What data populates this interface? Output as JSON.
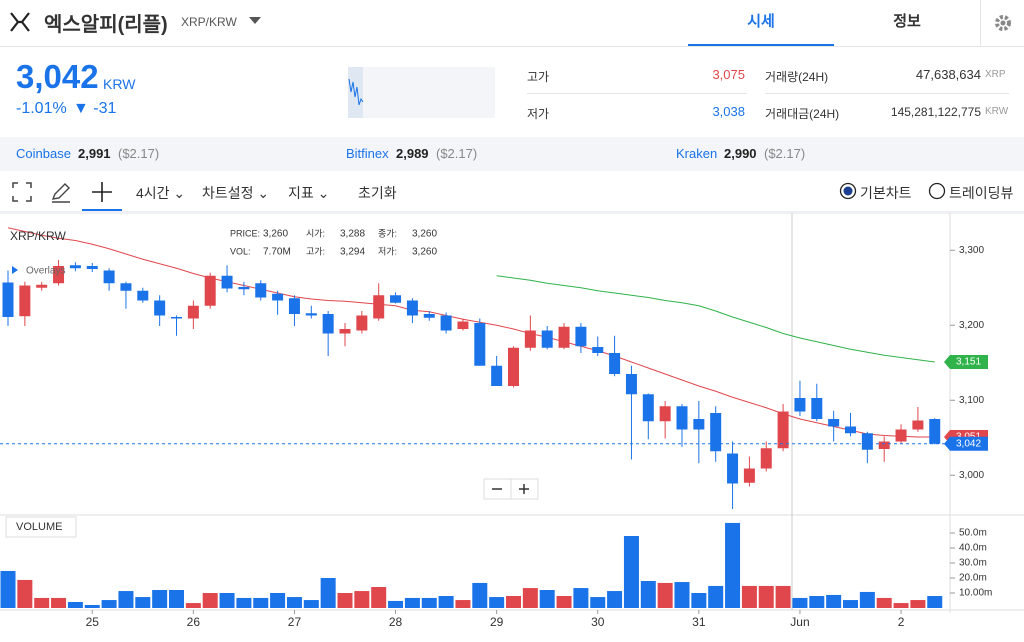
{
  "header": {
    "title": "엑스알피(리플)",
    "pair": "XRP/KRW",
    "tabs": [
      "시세",
      "정보"
    ],
    "price": "3,042",
    "currency": "KRW",
    "change_pct": "-1.01%",
    "change": "▼ -31",
    "stats": [
      {
        "label": "고가",
        "value": "3,075"
      },
      {
        "label": "저가",
        "value": "3,038"
      },
      {
        "label": "거래량(24H)",
        "value": "47,638,634",
        "unit": "XRP"
      },
      {
        "label": "거래대금(24H)",
        "value": "145,281,122,775",
        "unit": "KRW"
      }
    ]
  },
  "exchanges": [
    {
      "name": "Coinbase",
      "price": "2,991",
      "usd": "($2.17)"
    },
    {
      "name": "Bitfinex",
      "price": "2,989",
      "usd": "($2.17)"
    },
    {
      "name": "Kraken",
      "price": "2,990",
      "usd": "($2.17)"
    }
  ],
  "toolbar": {
    "interval": "4시간",
    "settings": "차트설정",
    "indicators": "지표",
    "reset": "초기화",
    "modes": [
      "기본차트",
      "트레이딩뷰"
    ]
  },
  "chart_data": {
    "type": "candlestick",
    "pair_label": "XRP/KRW",
    "overlays_label": "Overlays",
    "volume_label": "VOLUME",
    "info": [
      {
        "label": "PRICE:",
        "value": "3,260"
      },
      {
        "label": "시가:",
        "value": "3,288"
      },
      {
        "label": "종가:",
        "value": "3,260"
      },
      {
        "label": "VOL:",
        "value": "7.70M"
      },
      {
        "label": "고가:",
        "value": "3,294"
      },
      {
        "label": "저가:",
        "value": "3,260"
      }
    ],
    "categories": [
      null,
      null,
      null,
      null,
      null,
      "25",
      null,
      null,
      null,
      null,
      null,
      "26",
      null,
      null,
      null,
      null,
      null,
      "27",
      null,
      null,
      null,
      null,
      null,
      "28",
      null,
      null,
      null,
      null,
      null,
      "29",
      null,
      null,
      null,
      null,
      null,
      "30",
      null,
      null,
      null,
      null,
      null,
      "31",
      null,
      null,
      null,
      null,
      null,
      "Jun",
      null,
      null,
      null,
      null,
      null,
      "2",
      null,
      null
    ],
    "open": [
      3257,
      3212,
      3250,
      3256,
      3280,
      3279,
      3273,
      3256,
      3246,
      3233,
      3211,
      3209,
      3226,
      3266,
      3251,
      3256,
      3242,
      3236,
      3216,
      3215,
      3189,
      3193,
      3209,
      3240,
      3233,
      3215,
      3213,
      3195,
      3203,
      3146,
      3119,
      3170,
      3193,
      3170,
      3198,
      3171,
      3163,
      3135,
      3108,
      3072,
      3092,
      3075,
      3083,
      3029,
      2990,
      3009,
      3036,
      3103,
      3103,
      3075,
      3065,
      3056,
      3035,
      3045,
      3061,
      3075
    ],
    "high": [
      3273,
      3258,
      3258,
      3287,
      3284,
      3283,
      3276,
      3258,
      3250,
      3240,
      3213,
      3233,
      3270,
      3280,
      3258,
      3260,
      3246,
      3240,
      3226,
      3219,
      3203,
      3219,
      3256,
      3244,
      3236,
      3219,
      3217,
      3209,
      3209,
      3159,
      3172,
      3213,
      3199,
      3203,
      3203,
      3185,
      3186,
      3146,
      3109,
      3099,
      3095,
      3099,
      3092,
      3045,
      3025,
      3045,
      3095,
      3126,
      3122,
      3086,
      3083,
      3058,
      3052,
      3068,
      3091,
      3076
    ],
    "low": [
      3199,
      3199,
      3246,
      3253,
      3272,
      3271,
      3246,
      3222,
      3230,
      3199,
      3186,
      3195,
      3222,
      3244,
      3240,
      3233,
      3214,
      3199,
      3209,
      3159,
      3172,
      3189,
      3206,
      3229,
      3203,
      3206,
      3189,
      3193,
      3146,
      3119,
      3117,
      3166,
      3168,
      3168,
      3163,
      3159,
      3132,
      3021,
      3048,
      3049,
      3038,
      3016,
      3018,
      2955,
      2985,
      3005,
      3032,
      3079,
      3072,
      3045,
      3052,
      3016,
      3018,
      3042,
      3058,
      3041
    ],
    "close": [
      3211,
      3253,
      3254,
      3279,
      3276,
      3275,
      3256,
      3246,
      3233,
      3213,
      3209,
      3226,
      3266,
      3249,
      3248,
      3237,
      3233,
      3215,
      3213,
      3189,
      3195,
      3213,
      3240,
      3230,
      3213,
      3210,
      3193,
      3205,
      3146,
      3119,
      3170,
      3193,
      3170,
      3198,
      3172,
      3163,
      3135,
      3108,
      3072,
      3092,
      3061,
      3061,
      3032,
      2989,
      3009,
      3036,
      3085,
      3085,
      3075,
      3065,
      3056,
      3034,
      3045,
      3061,
      3073,
      3042
    ],
    "volume": [
      24.7,
      18.7,
      6.7,
      6.7,
      4,
      2,
      5.3,
      11.3,
      7.3,
      12,
      12,
      3.3,
      10,
      10,
      6.7,
      6.7,
      10,
      7.3,
      5.3,
      20,
      10,
      11.3,
      14,
      4.7,
      6.7,
      6.7,
      8,
      5.3,
      16.7,
      7.3,
      8,
      13.3,
      12,
      8,
      13.3,
      7.3,
      11.3,
      48,
      18,
      16.7,
      17.3,
      10,
      14.7,
      56.7,
      14.7,
      14.7,
      14.7,
      6.7,
      8,
      8.7,
      5.3,
      10.7,
      6.7,
      3.3,
      5.3,
      8
    ],
    "ma_lines": [
      {
        "color": "#e0474c",
        "values": [
          3330,
          3325,
          3320,
          3316,
          3313,
          3308,
          3302,
          3295,
          3288,
          3282,
          3276,
          3269,
          3263,
          3258,
          3253,
          3248,
          3243,
          3238,
          3235,
          3233,
          3232,
          3230,
          3228,
          3226,
          3220,
          3218,
          3213,
          3208,
          3204,
          3200,
          3195,
          3189,
          3184,
          3178,
          3172,
          3166,
          3159,
          3151,
          3143,
          3135,
          3127,
          3119,
          3112,
          3104,
          3097,
          3090,
          3082,
          3075,
          3070,
          3065,
          3060,
          3055,
          3053,
          3052,
          3051,
          3051
        ]
      },
      {
        "color": "#2fb34a",
        "values": [
          null,
          null,
          null,
          null,
          null,
          null,
          null,
          null,
          null,
          null,
          null,
          null,
          null,
          null,
          null,
          null,
          null,
          null,
          null,
          null,
          null,
          null,
          null,
          null,
          null,
          null,
          null,
          null,
          null,
          3266,
          3263,
          3260,
          3256,
          3253,
          3250,
          3246,
          3243,
          3240,
          3237,
          3233,
          3230,
          3226,
          3219,
          3211,
          3204,
          3197,
          3189,
          3183,
          3178,
          3173,
          3168,
          3164,
          3160,
          3157,
          3154,
          3151
        ]
      }
    ],
    "up_color": "#e0474c",
    "down_color": "#1a73e8",
    "ylim": [
      2951,
      3347
    ],
    "yticks": [
      {
        "value": 3000,
        "label": "3,000"
      },
      {
        "value": 3100,
        "label": "3,100"
      },
      {
        "value": 3200,
        "label": "3,200"
      },
      {
        "value": 3300,
        "label": "3,300"
      }
    ],
    "current_price": 3042,
    "price_tags": [
      {
        "value": 3151,
        "label": "3,151",
        "color": "#2fb34a"
      },
      {
        "value": 3051,
        "label": "3,051",
        "color": "#e0474c"
      },
      {
        "value": 3042,
        "label": "3,042",
        "color": "#1a73e8"
      }
    ],
    "vol_ylim": [
      0,
      60
    ],
    "vol_yticks": [
      {
        "value": 10,
        "label": "10.00m"
      },
      {
        "value": 20,
        "label": "20.0m"
      },
      {
        "value": 30,
        "label": "30.0m"
      },
      {
        "value": 40,
        "label": "40.0m"
      },
      {
        "value": 50,
        "label": "50.0m"
      }
    ]
  }
}
